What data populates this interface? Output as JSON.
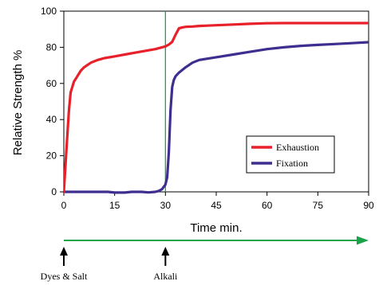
{
  "chart_data": {
    "type": "line",
    "title": "",
    "xlabel": "Time min.",
    "ylabel": "Relative Strength %",
    "xlim": [
      0,
      90
    ],
    "ylim": [
      0,
      100
    ],
    "x_ticks": [
      0,
      15,
      30,
      45,
      60,
      75,
      90
    ],
    "y_ticks": [
      0,
      20,
      40,
      60,
      80,
      100
    ],
    "grid": false,
    "legend_position": "lower-right",
    "series": [
      {
        "name": "Exhaustion",
        "color": "#e8202a",
        "x": [
          0,
          0.5,
          1,
          1.5,
          2,
          2.5,
          3,
          4,
          5,
          6,
          8,
          10,
          12,
          15,
          18,
          21,
          24,
          27,
          29,
          30,
          31,
          32,
          33,
          34,
          35,
          36,
          38,
          40,
          45,
          50,
          55,
          60,
          65,
          70,
          75,
          80,
          85,
          90
        ],
        "y": [
          0,
          15,
          30,
          45,
          55,
          58,
          61,
          64,
          67,
          69,
          71.5,
          73,
          74,
          75,
          76,
          77,
          78,
          79,
          80,
          80.5,
          81.5,
          83,
          87,
          90.5,
          91,
          91.3,
          91.5,
          91.8,
          92.2,
          92.6,
          93,
          93.3,
          93.4,
          93.4,
          93.4,
          93.4,
          93.4,
          93.4
        ]
      },
      {
        "name": "Fixation",
        "color": "#3f2e8f",
        "x": [
          0,
          5,
          10,
          13,
          15,
          18,
          20,
          23,
          25,
          27,
          28,
          29,
          30,
          30.5,
          31,
          31.5,
          32,
          32.5,
          33,
          34,
          35,
          36,
          38,
          40,
          45,
          50,
          55,
          60,
          65,
          70,
          75,
          80,
          85,
          90
        ],
        "y": [
          0,
          0,
          0,
          0,
          -0.4,
          -0.4,
          0,
          0,
          -0.3,
          0,
          0.5,
          1.5,
          4,
          8,
          22,
          45,
          58,
          62,
          64,
          66,
          67.5,
          69,
          71.5,
          73,
          74.5,
          76,
          77.5,
          79,
          80,
          80.8,
          81.3,
          81.8,
          82.3,
          82.8
        ]
      }
    ],
    "annotations": {
      "alkali_line_x": 30,
      "events": [
        {
          "label": "Dyes & Salt",
          "x": 0
        },
        {
          "label": "Alkali",
          "x": 30
        }
      ]
    }
  },
  "colors": {
    "marker_line": "#1aa34a",
    "time_arrow": "#1aa34a",
    "axes": "#000000"
  }
}
